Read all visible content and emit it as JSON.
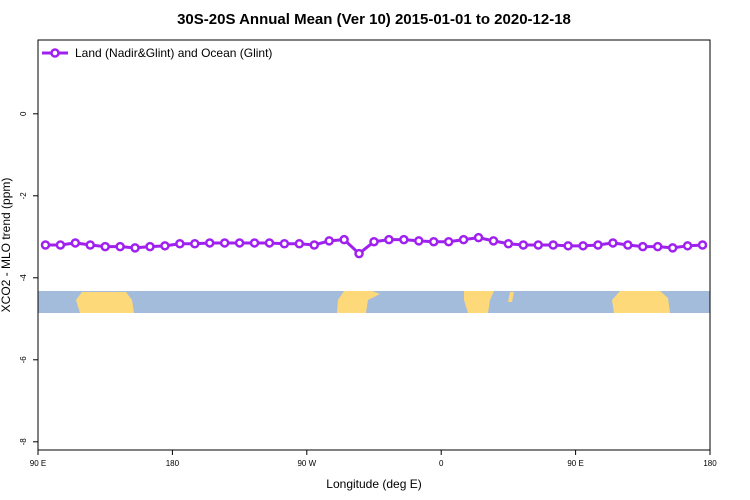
{
  "chart_data": {
    "type": "line",
    "title": "30S-20S Annual Mean (Ver 10)   2015-01-01 to 2020-12-18",
    "x_label": "Longitude (deg E)",
    "y_label": "XCO2 - MLO trend (ppm)",
    "x": [
      95,
      105,
      115,
      125,
      135,
      145,
      155,
      165,
      175,
      185,
      195,
      205,
      215,
      225,
      235,
      245,
      255,
      265,
      275,
      285,
      295,
      305,
      315,
      325,
      335,
      345,
      355,
      365,
      375,
      385,
      395,
      405,
      415,
      425,
      435,
      445,
      455,
      465,
      475,
      485,
      495,
      505,
      515,
      525,
      535
    ],
    "series": [
      {
        "name": "Land (Nadir&Glint) and Ocean (Glint)",
        "color": "#a020f0",
        "values": [
          -3.2,
          -3.2,
          -3.15,
          -3.2,
          -3.24,
          -3.24,
          -3.27,
          -3.24,
          -3.22,
          -3.17,
          -3.17,
          -3.15,
          -3.15,
          -3.15,
          -3.15,
          -3.15,
          -3.17,
          -3.17,
          -3.2,
          -3.1,
          -3.07,
          -3.41,
          -3.12,
          -3.07,
          -3.07,
          -3.1,
          -3.12,
          -3.12,
          -3.07,
          -3.02,
          -3.1,
          -3.17,
          -3.2,
          -3.2,
          -3.2,
          -3.22,
          -3.22,
          -3.2,
          -3.15,
          -3.2,
          -3.24,
          -3.24,
          -3.27,
          -3.22,
          -3.2
        ]
      }
    ],
    "xlim": [
      90,
      540
    ],
    "xticks": [
      {
        "value": 90,
        "label": "90 E"
      },
      180,
      {
        "value": 270,
        "label": "90 W"
      },
      {
        "value": 360,
        "label": "0"
      },
      {
        "value": 450,
        "label": "90 E"
      },
      {
        "value": 540,
        "label": "180"
      }
    ],
    "ylim": [
      -8.2,
      1.8
    ],
    "yticks": [
      0,
      -2,
      -4,
      -6,
      -8
    ],
    "legend": "top-left"
  }
}
